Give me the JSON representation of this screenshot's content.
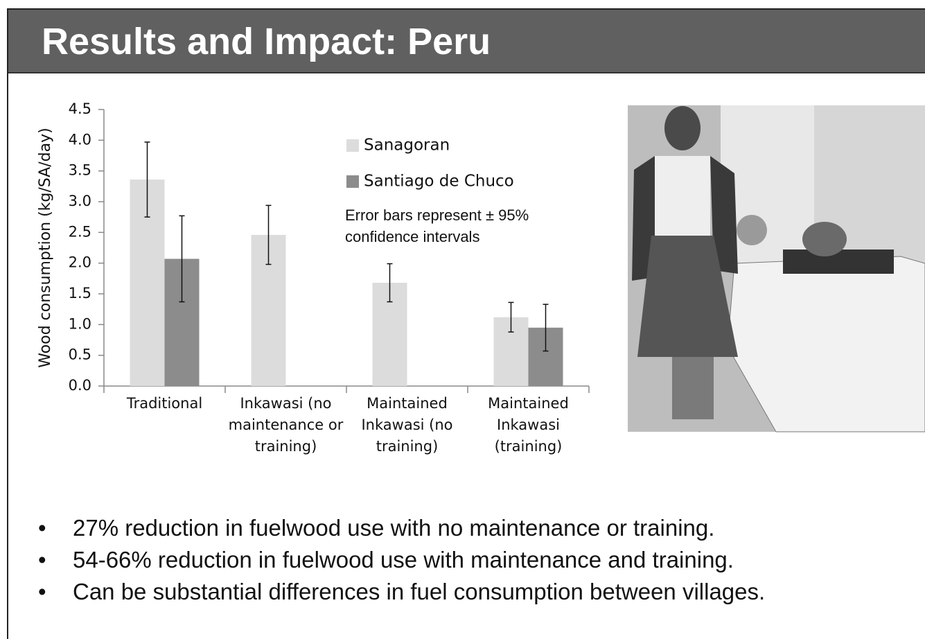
{
  "title": "Results and Impact: Peru",
  "chart_data": {
    "type": "bar",
    "y_label": "Wood consumption (kg/SA/day)",
    "categories": [
      "Traditional",
      "Inkawasi (no maintenance or training)",
      "Maintained Inkawasi (no training)",
      "Maintained Inkawasi (training)"
    ],
    "series": [
      {
        "name": "Sanagoran",
        "color": "#dcdcdc",
        "values": [
          3.36,
          2.46,
          1.68,
          1.12
        ],
        "errors": [
          0.61,
          0.48,
          0.31,
          0.24
        ]
      },
      {
        "name": "Santiago de Chuco",
        "color": "#8c8c8c",
        "values": [
          2.07,
          null,
          null,
          0.95
        ],
        "errors": [
          0.7,
          null,
          null,
          0.38
        ]
      }
    ],
    "annotation": "Error bars represent ± 95% confidence intervals",
    "ylim": [
      0,
      4.5
    ],
    "yticks": [
      {
        "value": 0,
        "label": "0.0"
      },
      0.5,
      {
        "value": 1,
        "label": "1.0"
      },
      1.5,
      {
        "value": 2,
        "label": "2.0"
      },
      2.5,
      {
        "value": 3,
        "label": "3.0"
      },
      3.5,
      {
        "value": 4,
        "label": "4.0"
      },
      4.5
    ],
    "grid": false,
    "legend": "top-right"
  },
  "bullets": [
    "27% reduction in fuelwood use with no maintenance or training.",
    "54-66% reduction in fuelwood use with maintenance and training.",
    "Can be substantial differences in fuel consumption between villages."
  ]
}
